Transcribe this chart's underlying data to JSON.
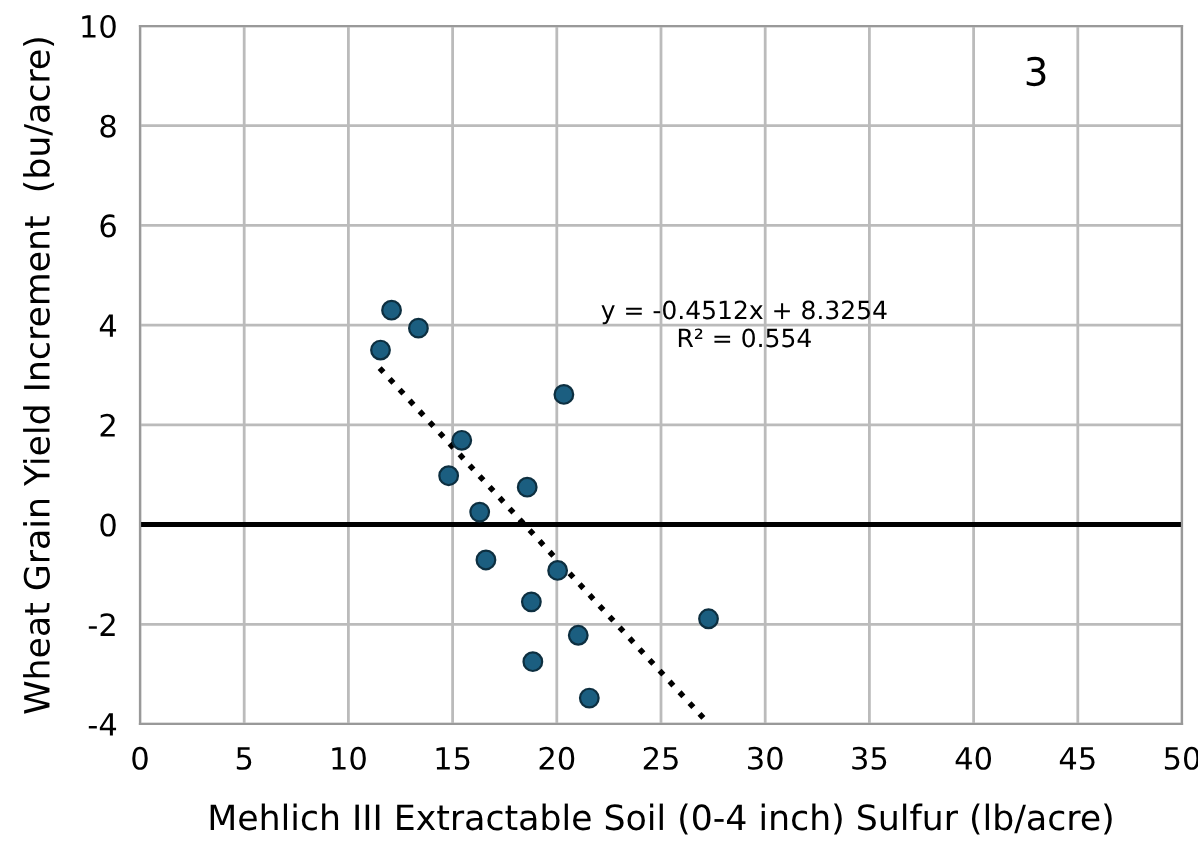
{
  "chart_data": {
    "type": "scatter",
    "xlabel": "Mehlich III Extractable Soil (0-4 inch) Sulfur (lb/acre)",
    "ylabel": "Wheat Grain Yield Increment  (bu/acre)",
    "xlim": [
      0,
      50
    ],
    "xticks": [
      0,
      5,
      10,
      15,
      20,
      25,
      30,
      35,
      40,
      45,
      50
    ],
    "ylim": [
      -4,
      10
    ],
    "yticks": [
      -4,
      -2,
      0,
      2,
      4,
      6,
      8,
      10
    ],
    "grid": true,
    "marker": "circle",
    "series": [
      {
        "color": "#1b5e80",
        "x": [
          12.07,
          13.36,
          11.54,
          20.34,
          15.44,
          14.81,
          18.58,
          16.3,
          16.6,
          20.04,
          18.78,
          27.28,
          21.03,
          18.85,
          21.56
        ],
        "values": [
          4.3,
          3.94,
          3.5,
          2.61,
          1.69,
          0.98,
          0.75,
          0.25,
          -0.71,
          -0.92,
          -1.55,
          -1.89,
          -2.22,
          -2.75,
          -3.48
        ]
      },
      {
        "type": "line",
        "color": "#000000",
        "line_style": "dotted",
        "marker": "none",
        "x": [
          11.5,
          27.3
        ],
        "values": [
          3.14,
          -4.0
        ]
      }
    ],
    "ref_lines": [
      {
        "axis": "y",
        "value": 0,
        "color": "#000000",
        "line_style": "solid"
      }
    ],
    "annotations": [
      "3",
      "y = -0.4512x + 8.3254\nR² = 0.554"
    ]
  }
}
